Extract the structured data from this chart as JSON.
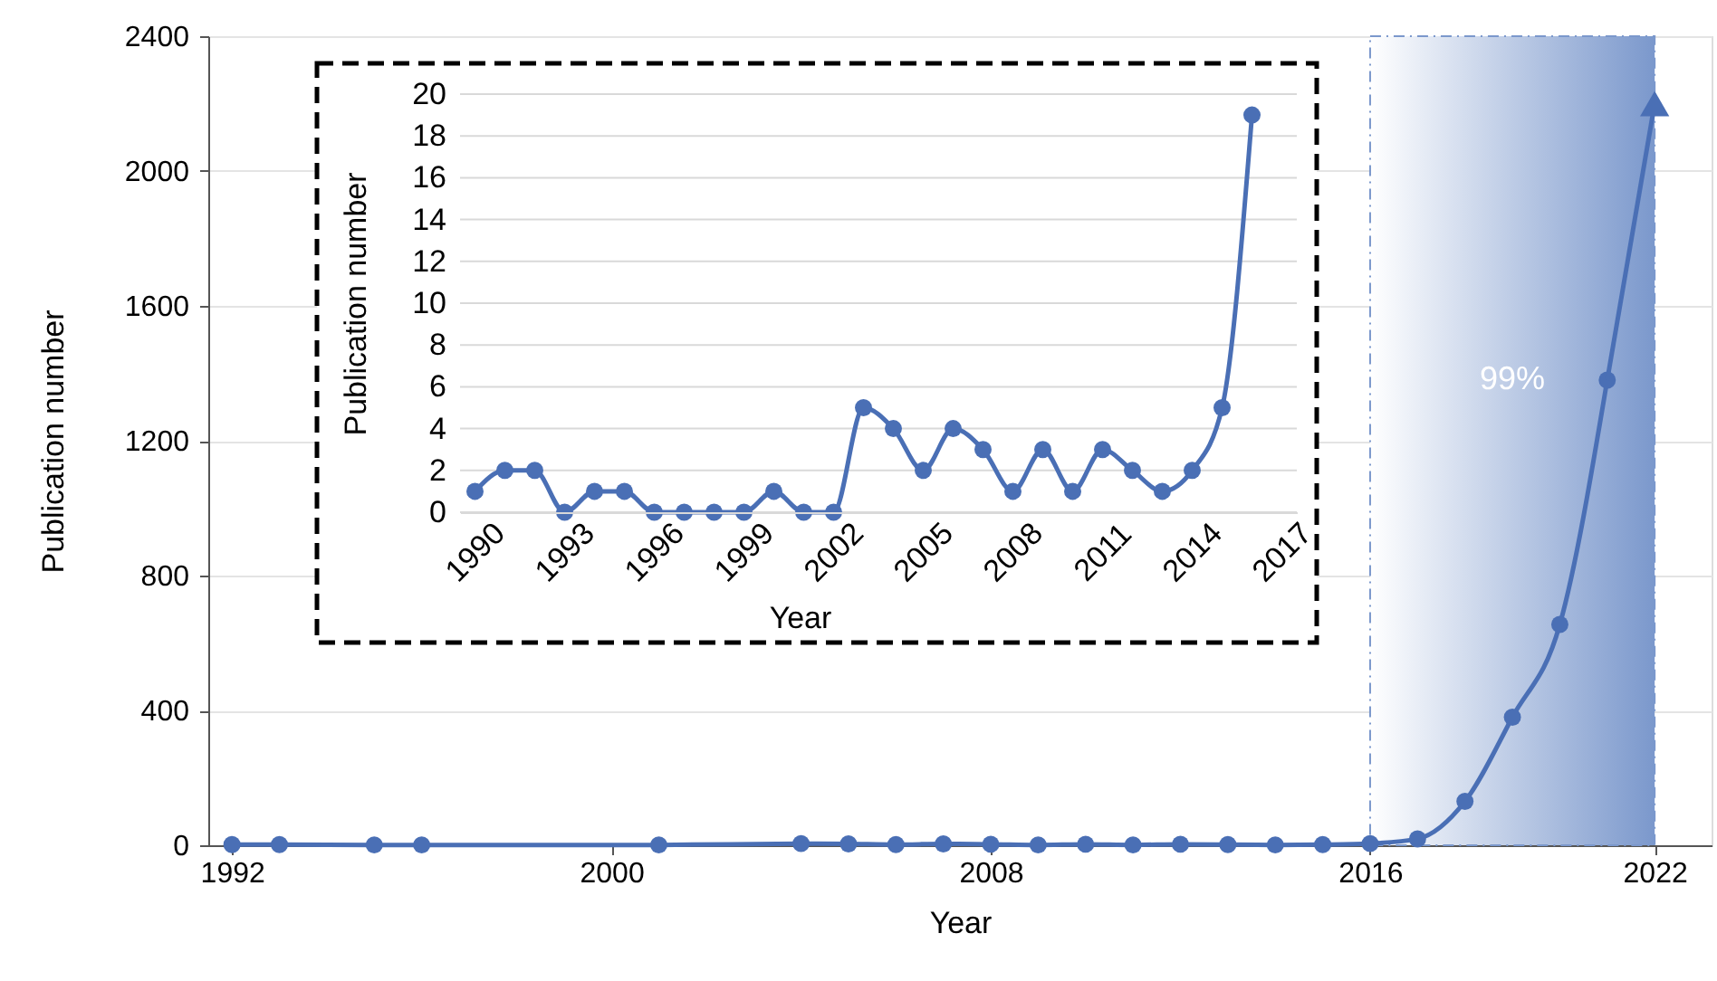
{
  "chart_data": [
    {
      "type": "line",
      "xlabel": "Year",
      "ylabel": "Publication number",
      "xlim": [
        1991.5,
        2023.2
      ],
      "xticks": [
        1992,
        2000,
        2008,
        2016,
        2022
      ],
      "ylim": [
        0,
        2400
      ],
      "yticks": [
        0,
        400,
        800,
        1200,
        1600,
        2000,
        2400
      ],
      "grid": "y",
      "line_style": "solid",
      "series": [
        {
          "type": "line",
          "marker": "circle",
          "color": "#4a6fb5",
          "x": [
            1992,
            1993,
            1995,
            1996,
            2001,
            2004,
            2005,
            2006,
            2007,
            2008,
            2009,
            2010,
            2011,
            2012,
            2013,
            2014,
            2015,
            2016,
            2017,
            2018,
            2019,
            2020,
            2021
          ],
          "values": [
            2,
            2,
            1,
            1,
            1,
            5,
            4,
            2,
            4,
            3,
            1,
            3,
            1,
            3,
            2,
            1,
            2,
            5,
            19,
            130,
            380,
            655,
            1380
          ]
        },
        {
          "type": "line",
          "marker": "none",
          "color": "#4a6fb5",
          "x": [
            2021,
            2022
          ],
          "values": [
            1380,
            2200
          ]
        },
        {
          "type": "scatter",
          "marker": "triangle",
          "color": "#4a6fb5",
          "x": [
            2022
          ],
          "values": [
            2200
          ]
        }
      ],
      "bands": [
        {
          "axis": "x",
          "from": 2016,
          "to": 2022,
          "label": "99%",
          "color": "#7b98cc"
        }
      ]
    },
    {
      "type": "line",
      "xlabel": "Year",
      "ylabel": "Publication number",
      "xlim": [
        1989.5,
        2017.5
      ],
      "xticks": [
        1990,
        1993,
        1996,
        1999,
        2002,
        2005,
        2008,
        2011,
        2014,
        2017
      ],
      "ylim": [
        0,
        20
      ],
      "yticks": [
        0,
        2,
        4,
        6,
        8,
        10,
        12,
        14,
        16,
        18,
        20
      ],
      "grid": "y",
      "marker": "circle",
      "line_style": "solid",
      "series": [
        {
          "color": "#4a6fb5",
          "x": [
            1990,
            1991,
            1992,
            1993,
            1994,
            1995,
            1996,
            1997,
            1998,
            1999,
            2000,
            2001,
            2002,
            2003,
            2004,
            2005,
            2006,
            2007,
            2008,
            2009,
            2010,
            2011,
            2012,
            2013,
            2014,
            2015,
            2016
          ],
          "values": [
            1,
            2,
            2,
            0,
            1,
            1,
            0,
            0,
            0,
            0,
            1,
            0,
            0,
            5,
            4,
            2,
            4,
            3,
            1,
            3,
            1,
            3,
            2,
            1,
            2,
            5,
            19
          ]
        }
      ]
    }
  ]
}
